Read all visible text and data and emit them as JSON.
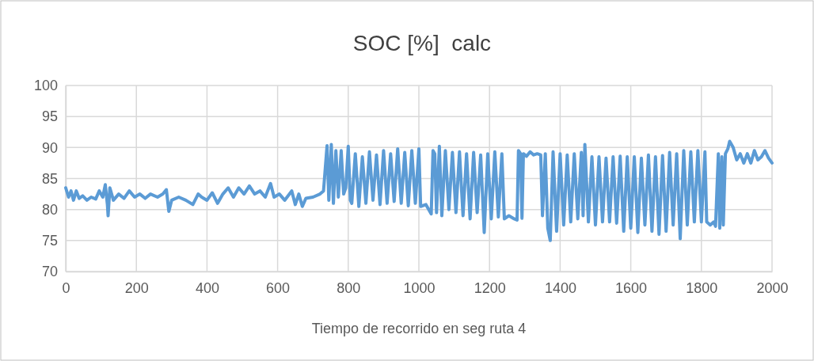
{
  "chart_data": {
    "type": "line",
    "title": "SOC [%]  calc",
    "xlabel": "Tiempo de recorrido en seg ruta 4",
    "xlim": [
      0,
      2000
    ],
    "xticks": [
      0,
      200,
      400,
      600,
      800,
      1000,
      1200,
      1400,
      1600,
      1800,
      2000
    ],
    "ylim": [
      70,
      100
    ],
    "yticks": [
      70,
      75,
      80,
      85,
      90,
      95,
      100
    ],
    "grid": true,
    "marker": "none",
    "line_style": "solid",
    "series": [
      {
        "color": "#5b9bd5",
        "x": [
          0,
          8,
          15,
          22,
          30,
          38,
          48,
          60,
          72,
          85,
          95,
          105,
          112,
          118,
          120,
          125,
          135,
          150,
          165,
          180,
          195,
          210,
          225,
          240,
          260,
          275,
          285,
          292,
          300,
          320,
          340,
          360,
          375,
          385,
          400,
          415,
          430,
          445,
          460,
          475,
          490,
          505,
          520,
          535,
          550,
          565,
          580,
          590,
          605,
          620,
          640,
          650,
          660,
          670,
          680,
          700,
          720,
          730,
          740,
          745,
          752,
          758,
          765,
          772,
          780,
          787,
          793,
          800,
          806,
          810,
          820,
          830,
          840,
          850,
          860,
          870,
          880,
          890,
          900,
          910,
          920,
          930,
          940,
          950,
          960,
          970,
          980,
          990,
          1000,
          1005,
          1020,
          1035,
          1040,
          1045,
          1050,
          1058,
          1065,
          1075,
          1085,
          1095,
          1105,
          1115,
          1125,
          1135,
          1145,
          1155,
          1165,
          1175,
          1185,
          1195,
          1205,
          1215,
          1225,
          1235,
          1242,
          1255,
          1270,
          1278,
          1282,
          1288,
          1292,
          1296,
          1305,
          1315,
          1325,
          1335,
          1345,
          1350,
          1358,
          1365,
          1372,
          1380,
          1390,
          1400,
          1410,
          1420,
          1430,
          1440,
          1450,
          1460,
          1465,
          1470,
          1480,
          1490,
          1500,
          1510,
          1520,
          1530,
          1540,
          1550,
          1560,
          1570,
          1580,
          1590,
          1600,
          1610,
          1620,
          1630,
          1640,
          1650,
          1660,
          1670,
          1680,
          1690,
          1700,
          1710,
          1720,
          1730,
          1740,
          1750,
          1760,
          1770,
          1780,
          1790,
          1800,
          1810,
          1815,
          1825,
          1835,
          1840,
          1848,
          1852,
          1858,
          1862,
          1868,
          1875,
          1880,
          1890,
          1900,
          1910,
          1920,
          1930,
          1940,
          1950,
          1960,
          1970,
          1980,
          1990,
          2000
        ],
        "values": [
          83.5,
          82,
          83,
          81.5,
          83,
          81.8,
          82.2,
          81.5,
          82,
          81.7,
          83,
          82,
          84,
          80.8,
          79,
          83.5,
          81.5,
          82.5,
          81.8,
          83,
          82,
          82.5,
          81.8,
          82.5,
          82,
          82.5,
          83.2,
          79.7,
          81.5,
          82,
          81.5,
          80.8,
          82.5,
          82,
          81.5,
          82.7,
          81,
          82.5,
          83.5,
          82,
          83.5,
          82.5,
          83.8,
          82.5,
          83,
          82,
          84.2,
          82,
          82.5,
          81.5,
          83,
          80.8,
          82.5,
          80.5,
          81.8,
          82,
          82.5,
          83,
          90.3,
          81.5,
          90.5,
          81,
          89.5,
          82,
          89.5,
          82.5,
          83.5,
          90.2,
          81.5,
          81,
          89,
          80.5,
          88.5,
          81,
          89.3,
          81.5,
          88.8,
          80.8,
          89.5,
          81,
          89,
          81.3,
          89.8,
          81,
          89.2,
          80.6,
          89.5,
          81,
          89.8,
          80.5,
          80.8,
          79.3,
          89.5,
          89,
          79.5,
          90.2,
          79,
          89.5,
          80,
          89.2,
          79.5,
          89.3,
          79,
          89,
          78.5,
          89.2,
          79.5,
          88.8,
          76.3,
          89,
          78.5,
          89.3,
          78.8,
          89,
          78.5,
          79,
          78.5,
          78.3,
          89.5,
          89,
          78.6,
          89,
          88.6,
          89.3,
          88.8,
          89,
          88.8,
          79,
          89,
          77,
          75,
          89.3,
          76.5,
          89,
          77.5,
          88.8,
          78,
          89,
          78.5,
          89.2,
          79,
          90.5,
          78,
          88.5,
          77.5,
          88.5,
          78,
          88.3,
          78,
          88.5,
          77.8,
          88.6,
          76.5,
          88.5,
          77,
          88.5,
          76.3,
          88.3,
          77.5,
          88.8,
          76.5,
          88.5,
          76,
          88.7,
          76.5,
          89.2,
          77.5,
          89,
          75.3,
          89.5,
          77.5,
          89.3,
          78,
          89.5,
          78,
          89.3,
          78,
          77.5,
          78,
          77.3,
          89,
          77,
          88.5,
          77.5,
          89,
          89.8,
          91,
          90,
          88,
          89,
          87.5,
          89,
          87.5,
          89.5,
          88,
          88.5,
          89.5,
          88.3,
          87.5
        ]
      }
    ]
  }
}
